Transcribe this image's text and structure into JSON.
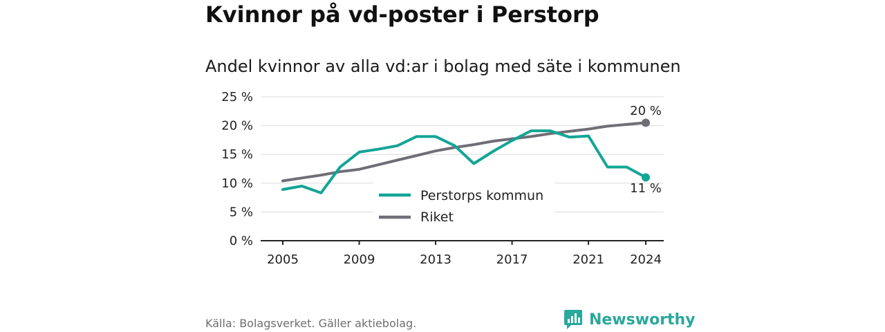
{
  "title": "Kvinnor på vd-poster i Perstorp",
  "subtitle": "Andel kvinnor av alla vd:ar i bolag med säte i kommunen",
  "source": "Källa: Bolagsverket. Gäller aktiebolag.",
  "brand": "Newsworthy",
  "colors": {
    "perstorp": "#13a596",
    "riket": "#6f6e76",
    "brand": "#2aa89b"
  },
  "chart_data": {
    "type": "line",
    "x": [
      2005,
      2006,
      2007,
      2008,
      2009,
      2010,
      2011,
      2012,
      2013,
      2014,
      2015,
      2016,
      2017,
      2018,
      2019,
      2020,
      2021,
      2022,
      2023,
      2024
    ],
    "series": [
      {
        "name": "Perstorps kommun",
        "color": "#13a596",
        "values": [
          8.9,
          9.5,
          8.3,
          12.8,
          15.4,
          15.9,
          16.5,
          18.1,
          18.1,
          16.5,
          13.4,
          15.5,
          17.4,
          19.1,
          19.1,
          18.0,
          18.2,
          12.8,
          12.8,
          11.0
        ]
      },
      {
        "name": "Riket",
        "color": "#6f6e76",
        "values": [
          10.4,
          10.9,
          11.4,
          12.0,
          12.4,
          13.2,
          14.0,
          14.8,
          15.6,
          16.2,
          16.7,
          17.3,
          17.7,
          18.1,
          18.6,
          19.0,
          19.4,
          19.9,
          20.2,
          20.5
        ]
      }
    ],
    "x_ticks": [
      "2005",
      "2009",
      "2013",
      "2017",
      "2021",
      "2024"
    ],
    "y_ticks": [
      "0 %",
      "5 %",
      "10 %",
      "15 %",
      "20 %",
      "25 %"
    ],
    "ylim": [
      0,
      25
    ],
    "end_labels": [
      "11 %",
      "20 %"
    ],
    "legend": [
      "Perstorps kommun",
      "Riket"
    ],
    "legend_position": "center",
    "grid": "horizontal"
  }
}
